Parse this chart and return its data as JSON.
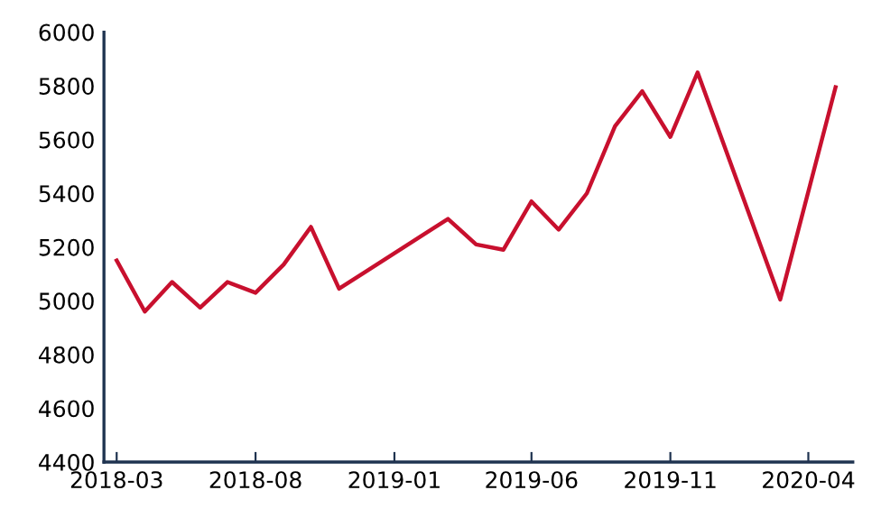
{
  "chart_data": {
    "type": "line",
    "x": [
      "2018-03",
      "2018-04",
      "2018-05",
      "2018-06",
      "2018-07",
      "2018-08",
      "2018-09",
      "2018-10",
      "2018-11",
      "2018-12",
      "2019-03",
      "2019-04",
      "2019-05",
      "2019-06",
      "2019-07",
      "2019-08",
      "2019-09",
      "2019-10",
      "2019-11",
      "2019-12",
      "2020-03",
      "2020-05"
    ],
    "series": [
      {
        "color": "#c8102e",
        "values": [
          5150,
          4960,
          5070,
          4975,
          5070,
          5030,
          5135,
          5275,
          5045,
          5110,
          5305,
          5210,
          5190,
          5370,
          5265,
          5400,
          5650,
          5780,
          5610,
          5850,
          5005,
          5795
        ]
      }
    ],
    "xlim": [
      "2018-02-15",
      "2020-05-20"
    ],
    "xticks": [
      "2018-03",
      "2018-08",
      "2019-01",
      "2019-06",
      "2019-11",
      "2020-04"
    ],
    "ylim": [
      4400,
      6000
    ],
    "yticks": [
      4400,
      4600,
      4800,
      5000,
      5200,
      5400,
      5600,
      5800,
      6000
    ],
    "grid": false,
    "marker": "none",
    "line_style": "solid"
  }
}
